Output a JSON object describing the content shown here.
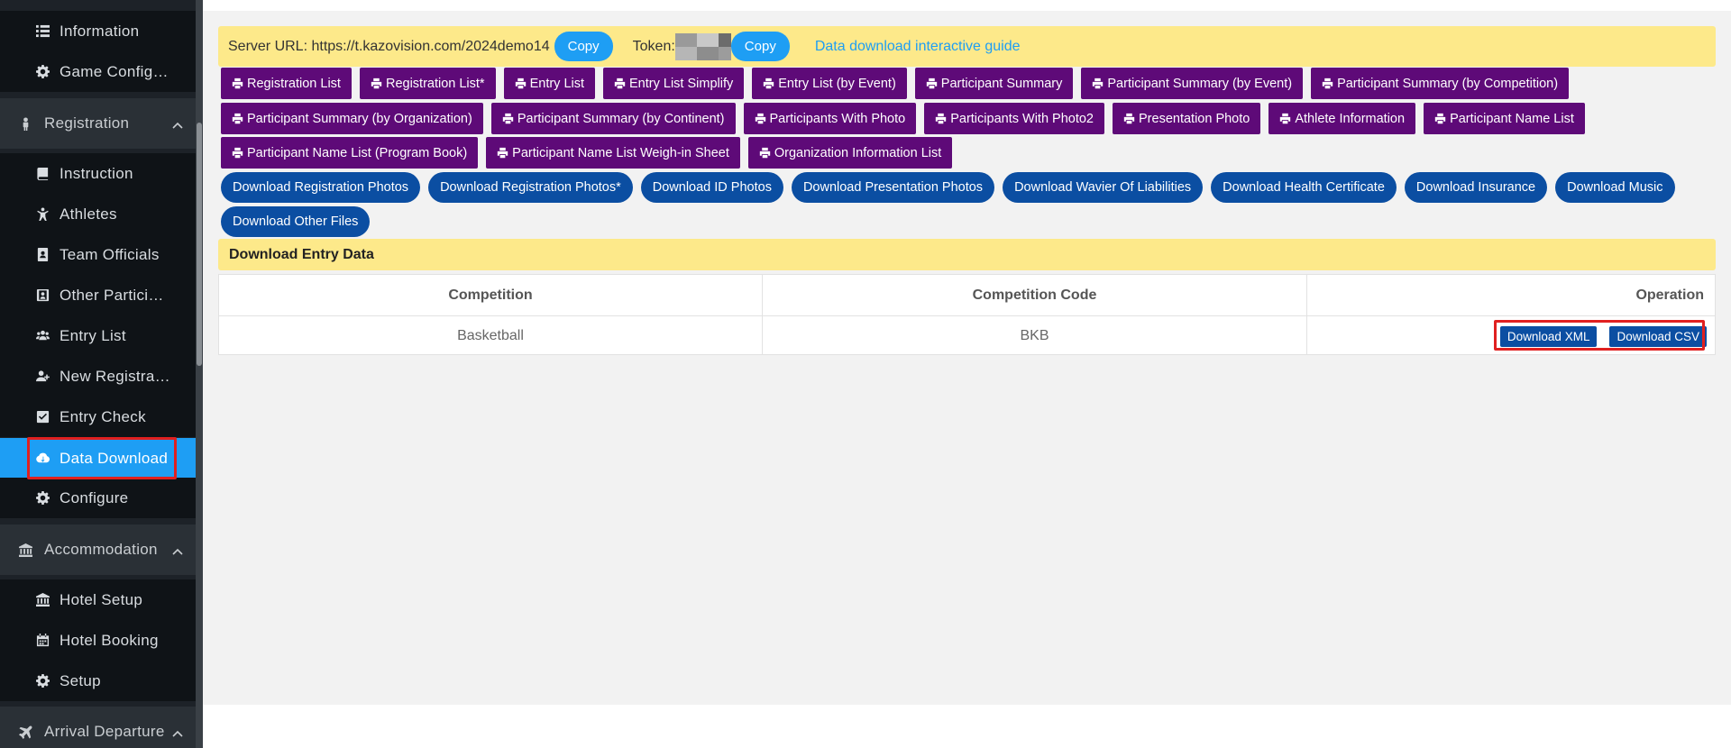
{
  "sidebar": {
    "items_top": [
      {
        "label": "Information",
        "icon": "list-icon"
      },
      {
        "label": "Game Config…",
        "icon": "gear-icon"
      }
    ],
    "registration": {
      "title": "Registration",
      "icon": "person-icon",
      "items": [
        {
          "label": "Instruction",
          "icon": "book-icon"
        },
        {
          "label": "Athletes",
          "icon": "athlete-icon"
        },
        {
          "label": "Team Officials",
          "icon": "id-badge-icon"
        },
        {
          "label": "Other Partici…",
          "icon": "id-card-icon"
        },
        {
          "label": "Entry List",
          "icon": "users-icon"
        },
        {
          "label": "New Registra…",
          "icon": "user-plus-icon"
        },
        {
          "label": "Entry Check",
          "icon": "check-square-icon"
        },
        {
          "label": "Data Download",
          "icon": "cloud-download-icon",
          "active": true
        },
        {
          "label": "Configure",
          "icon": "gear-icon"
        }
      ]
    },
    "accommodation": {
      "title": "Accommodation",
      "icon": "bank-icon",
      "items": [
        {
          "label": "Hotel Setup",
          "icon": "bank-icon"
        },
        {
          "label": "Hotel Booking",
          "icon": "calendar-icon"
        },
        {
          "label": "Setup",
          "icon": "gear-icon"
        }
      ]
    },
    "arrival": {
      "title": "Arrival Departure",
      "icon": "plane-icon"
    }
  },
  "info_bar": {
    "server_label": "Server URL: https://t.kazovision.com/2024demo14",
    "copy_label": "Copy",
    "token_label": "Token:",
    "guide_link": "Data download interactive guide"
  },
  "print_buttons": {
    "row1": [
      "Registration List",
      "Registration List*",
      "Entry List",
      "Entry List Simplify",
      "Entry List (by Event)",
      "Participant Summary",
      "Participant Summary (by Event)",
      "Participant Summary (by Competition)"
    ],
    "row2": [
      "Participant Summary (by Organization)",
      "Participant Summary (by Continent)",
      "Participants With Photo",
      "Participants With Photo2",
      "Presentation Photo",
      "Athlete Information",
      "Participant Name List"
    ],
    "row3": [
      "Participant Name List (Program Book)",
      "Participant Name List Weigh-in Sheet",
      "Organization Information List"
    ]
  },
  "download_buttons": {
    "row1": [
      "Download Registration Photos",
      "Download Registration Photos*",
      "Download ID Photos",
      "Download Presentation Photos",
      "Download Wavier Of Liabilities",
      "Download Health Certificate",
      "Download Insurance",
      "Download Music"
    ],
    "row2": [
      "Download Other Files"
    ]
  },
  "entry_data": {
    "title": "Download Entry Data",
    "headers": [
      "Competition",
      "Competition Code",
      "Operation"
    ],
    "rows": [
      {
        "competition": "Basketball",
        "code": "BKB",
        "xml_label": "Download XML",
        "csv_label": "Download CSV"
      }
    ]
  }
}
